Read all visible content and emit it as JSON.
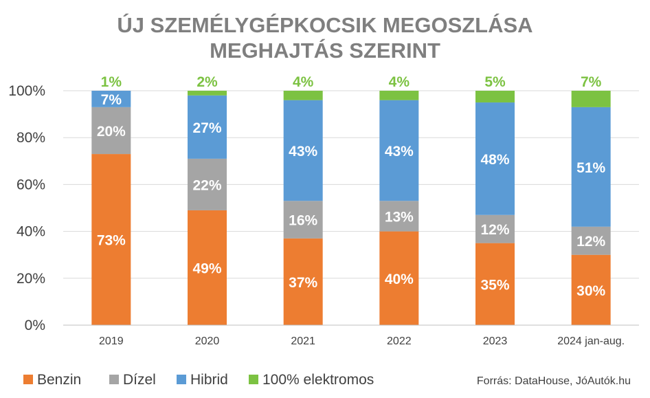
{
  "chart_data": {
    "type": "bar",
    "stacked": true,
    "title": [
      "ÚJ SZEMÉLYGÉPKOCSIK MEGOSZLÁSA",
      "MEGHAJTÁS SZERINT"
    ],
    "categories": [
      "2019",
      "2020",
      "2021",
      "2022",
      "2023",
      "2024 jan-aug."
    ],
    "series": [
      {
        "name": "Benzin",
        "color": "#ed7d31",
        "values": [
          73,
          49,
          37,
          40,
          35,
          30
        ],
        "labels": [
          "73%",
          "49%",
          "37%",
          "40%",
          "35%",
          "30%"
        ]
      },
      {
        "name": "Dízel",
        "color": "#a5a5a5",
        "values": [
          20,
          22,
          16,
          13,
          12,
          12
        ],
        "labels": [
          "20%",
          "22%",
          "16%",
          "13%",
          "12%",
          "12%"
        ]
      },
      {
        "name": "Hibrid",
        "color": "#5b9bd5",
        "values": [
          7,
          27,
          43,
          43,
          48,
          51
        ],
        "labels": [
          "7%",
          "27%",
          "43%",
          "43%",
          "48%",
          "51%"
        ]
      },
      {
        "name": "100% elektromos",
        "color": "#7cc242",
        "values": [
          1,
          2,
          4,
          4,
          5,
          7
        ],
        "labels": [
          "1%",
          "2%",
          "4%",
          "4%",
          "5%",
          "7%"
        ]
      }
    ],
    "ylim": [
      0,
      100
    ],
    "yticks": [
      "0%",
      "20%",
      "40%",
      "60%",
      "80%",
      "100%"
    ],
    "grid": true,
    "legend_position": "bottom-left",
    "source": "Forrás: DataHouse, JóAutók.hu"
  }
}
